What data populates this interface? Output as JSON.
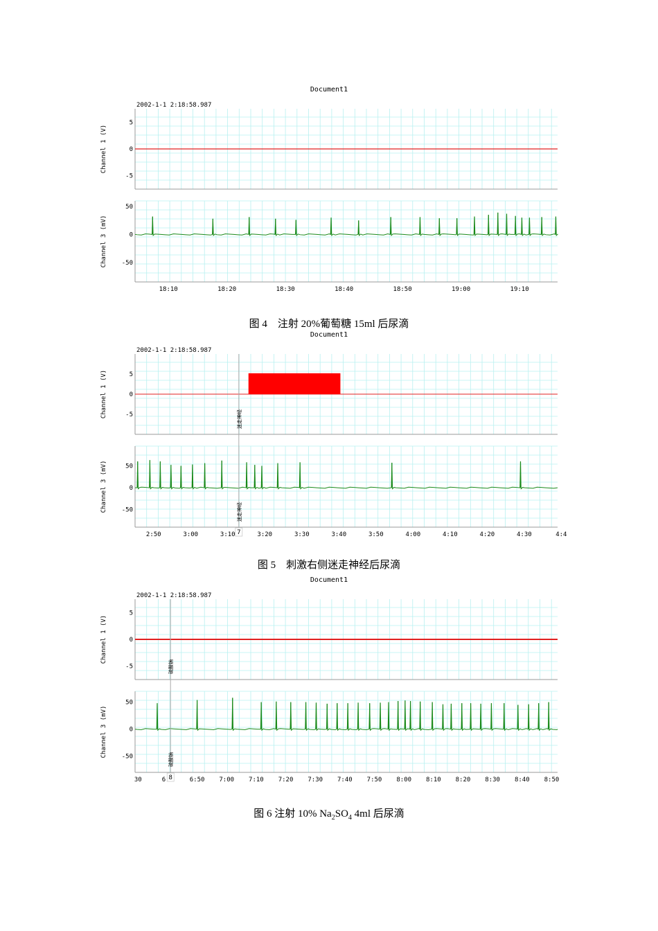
{
  "figures": [
    {
      "doc_title": "Document1",
      "timestamp": "2002-1-1 2:18:58.987",
      "caption": "图 4　注射 20%葡萄糖 15ml 后尿滴"
    },
    {
      "doc_title": "Document1",
      "timestamp": "2002-1-1 2:18:58.987",
      "caption": "图 5　刺激右侧迷走神经后尿滴"
    },
    {
      "doc_title": "Document1",
      "timestamp": "2002-1-1 2:18:58.987",
      "caption_prefix": "图 6  注射 10% Na",
      "caption_sub1": "2",
      "caption_mid": "SO",
      "caption_sub2": "4",
      "caption_suffix": " 4ml 后尿滴"
    }
  ],
  "chart_data": [
    {
      "type": "line",
      "title": "Document1",
      "x_unit": "min:sec",
      "xlim": [
        12.3,
        84.5
      ],
      "x_ticks": [
        20,
        30,
        40,
        50,
        60,
        70
      ],
      "x_tick_labels": [
        "18:10",
        "18:20",
        "18:30",
        "18:40",
        "18:50",
        "19:00",
        "19:10"
      ],
      "x_tick_values": [
        18,
        28,
        38,
        48,
        58,
        68,
        78
      ],
      "colors": {
        "channel1": "#e02020",
        "channel3": "#1a8a1a",
        "grid": "#b8f0f0"
      },
      "channels": [
        {
          "ylabel": "Channel 1 (V)",
          "ylim": [
            -7.5,
            7.5
          ],
          "yticks": [
            5,
            0,
            -5
          ],
          "ytick_labels": [
            "5",
            "0",
            "-5"
          ],
          "baseline": 0,
          "pulses": []
        },
        {
          "ylabel": "Channel 3 (mV)",
          "ylim": [
            -85,
            60
          ],
          "yticks": [
            50,
            0,
            -50
          ],
          "ytick_labels": [
            "50",
            "0",
            "-50"
          ],
          "spike_times": [
            15.3,
            25.6,
            31.8,
            36.3,
            39.8,
            45.8,
            50.5,
            56.0,
            61.0,
            64.3,
            67.3,
            70.3,
            72.7,
            74.3,
            75.8,
            77.3,
            78.4,
            79.7,
            81.8,
            84.2
          ],
          "spike_heights": [
            32,
            28,
            31,
            28,
            26,
            30,
            25,
            31,
            31,
            29,
            29,
            32,
            35,
            39,
            37,
            33,
            30,
            30,
            31,
            32
          ]
        }
      ]
    },
    {
      "type": "line",
      "title": "Document1",
      "xlim": [
        165,
        279
      ],
      "x_tick_labels": [
        "2:50",
        "3:00",
        "3:10",
        "3:20",
        "3:30",
        "3:40",
        "3:50",
        "4:00",
        "4:10",
        "4:20",
        "4:30",
        "4:4"
      ],
      "x_tick_values": [
        170,
        180,
        190,
        200,
        210,
        220,
        230,
        240,
        250,
        260,
        270,
        280
      ],
      "event_marker": {
        "x": 193,
        "label": "迷走神经",
        "number": "7"
      },
      "channels": [
        {
          "ylabel": "Channel 1 (V)",
          "ylim": [
            -10,
            10
          ],
          "yticks": [
            5,
            0,
            -5
          ],
          "ytick_labels": [
            "5",
            "0",
            "-5"
          ],
          "pulses": [
            {
              "x_start": 195.6,
              "x_end": 220.4,
              "value": 5.2
            }
          ]
        },
        {
          "ylabel": "Channel 3 (mV)",
          "ylim": [
            -90,
            95
          ],
          "yticks": [
            50,
            0,
            -50
          ],
          "ytick_labels": [
            "50",
            "0",
            "-50"
          ],
          "spike_times": [
            165.7,
            169.0,
            171.8,
            174.7,
            177.4,
            180.5,
            183.8,
            188.4,
            195.1,
            197.3,
            199.2,
            203.5,
            209.5,
            234.3,
            269.0
          ],
          "spike_heights": [
            60,
            63,
            60,
            52,
            50,
            53,
            56,
            62,
            58,
            52,
            50,
            56,
            58,
            57,
            60
          ]
        }
      ]
    },
    {
      "type": "line",
      "title": "Document1",
      "xlim": [
        389,
        532
      ],
      "x_tick_labels": [
        "30",
        "6:·",
        "6:50",
        "7:00",
        "7:10",
        "7:20",
        "7:30",
        "7:40",
        "7:50",
        "8:00",
        "8:10",
        "8:20",
        "8:30",
        "8:40",
        "8:50"
      ],
      "x_tick_values": [
        390,
        400,
        410,
        420,
        430,
        440,
        450,
        460,
        470,
        480,
        490,
        500,
        510,
        520,
        530
      ],
      "event_marker": {
        "x": 401,
        "label": "硫酸钠",
        "number": "8"
      },
      "channels": [
        {
          "ylabel": "Channel 1 (V)",
          "ylim": [
            -7.5,
            7.5
          ],
          "yticks": [
            5,
            0,
            -5
          ],
          "ytick_labels": [
            "5",
            "0",
            "-5"
          ],
          "baseline": 0,
          "pulses": []
        },
        {
          "ylabel": "Channel 3 (mV)",
          "ylim": [
            -80,
            70
          ],
          "yticks": [
            50,
            0,
            -50
          ],
          "ytick_labels": [
            "50",
            "0",
            "-50"
          ],
          "spike_times": [
            396.5,
            410.0,
            422.0,
            431.7,
            436.8,
            441.7,
            446.8,
            450.3,
            454.0,
            457.4,
            461.0,
            464.5,
            468.4,
            472.0,
            474.8,
            478.0,
            480.4,
            482.2,
            485.5,
            489.6,
            493.2,
            496.0,
            499.6,
            502.6,
            506.0,
            509.6,
            513.9,
            518.6,
            522.2,
            525.6,
            529.0
          ],
          "spike_heights": [
            48,
            54,
            58,
            50,
            51,
            50,
            50,
            49,
            47,
            48,
            48,
            49,
            48,
            49,
            50,
            52,
            53,
            52,
            51,
            50,
            46,
            47,
            48,
            48,
            47,
            48,
            48,
            45,
            46,
            48,
            50
          ]
        }
      ]
    }
  ]
}
